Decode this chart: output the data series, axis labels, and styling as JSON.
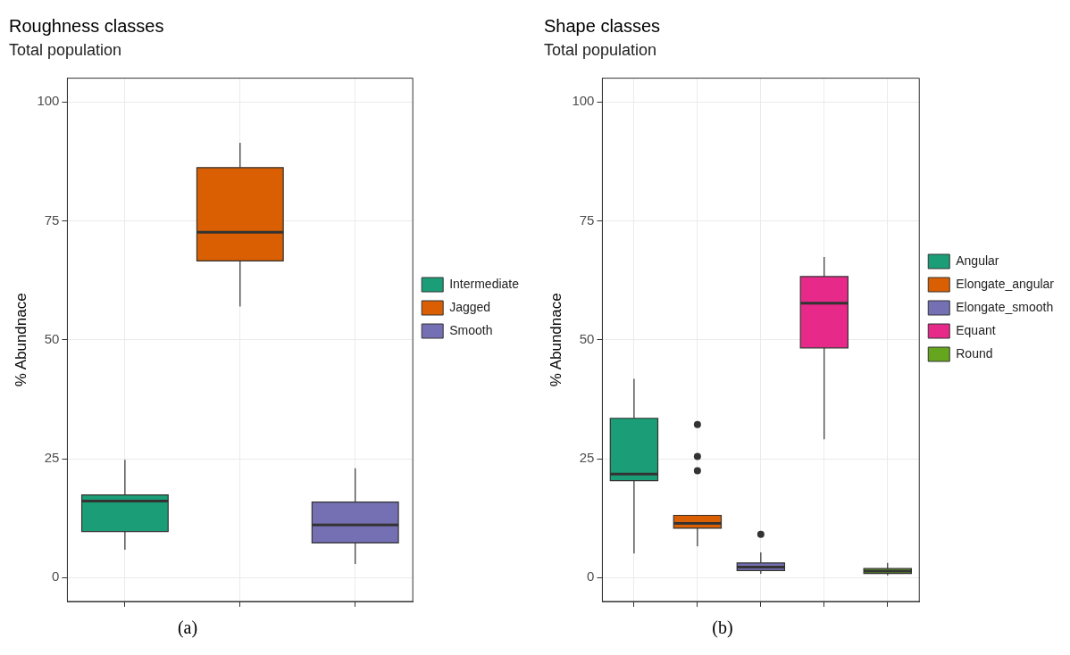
{
  "chart_data": [
    {
      "type": "box",
      "title": "Roughness classes",
      "subtitle": "Total population",
      "ylabel": "% Abundnace",
      "categories": [
        null,
        null,
        null
      ],
      "ylim": [
        -5,
        105
      ],
      "yticks": [
        0,
        25,
        50,
        75,
        100
      ],
      "grid": true,
      "legend": "right",
      "tick_labels": "y",
      "annotations": [
        "(a)"
      ],
      "series": [
        {
          "name": "Intermediate",
          "color": "#1b9e77",
          "boxes": [
            {
              "low": 5.9,
              "q1": 9.7,
              "median": 16.1,
              "q3": 17.4,
              "high": 24.8
            },
            null,
            null
          ]
        },
        {
          "name": "Jagged",
          "color": "#d95f02",
          "boxes": [
            null,
            {
              "low": 57.0,
              "q1": 66.6,
              "median": 72.6,
              "q3": 86.2,
              "high": 91.4
            },
            null
          ]
        },
        {
          "name": "Smooth",
          "color": "#7570b3",
          "boxes": [
            null,
            null,
            {
              "low": 2.9,
              "q1": 7.3,
              "median": 11.1,
              "q3": 15.9,
              "high": 23.0
            }
          ]
        }
      ]
    },
    {
      "type": "box",
      "title": "Shape classes",
      "subtitle": "Total population",
      "ylabel": "% Abundnace",
      "categories": [
        null,
        null,
        null,
        null,
        null
      ],
      "ylim": [
        -5,
        105
      ],
      "yticks": [
        0,
        25,
        50,
        75,
        100
      ],
      "grid": true,
      "legend": "right",
      "tick_labels": "y",
      "annotations": [
        "(b)"
      ],
      "series": [
        {
          "name": "Angular",
          "color": "#1b9e77",
          "boxes": [
            {
              "low": 5.1,
              "q1": 20.4,
              "median": 21.8,
              "q3": 33.5,
              "high": 41.8
            },
            null,
            null,
            null,
            null
          ]
        },
        {
          "name": "Elongate_angular",
          "color": "#d95f02",
          "boxes": [
            null,
            {
              "low": 6.6,
              "q1": 10.4,
              "median": 11.4,
              "q3": 13.1,
              "high": 13.1,
              "outliers": [
                22.5,
                25.5,
                32.2
              ]
            },
            null,
            null,
            null
          ]
        },
        {
          "name": "Elongate_smooth",
          "color": "#7570b3",
          "boxes": [
            null,
            null,
            {
              "low": 0.8,
              "q1": 1.5,
              "median": 2.2,
              "q3": 3.1,
              "high": 5.3,
              "outliers": [
                9.1
              ]
            },
            null,
            null
          ]
        },
        {
          "name": "Equant",
          "color": "#e7298a",
          "boxes": [
            null,
            null,
            null,
            {
              "low": 29.1,
              "q1": 48.3,
              "median": 57.7,
              "q3": 63.3,
              "high": 67.4
            },
            null
          ]
        },
        {
          "name": "Round",
          "color": "#66a61e",
          "boxes": [
            null,
            null,
            null,
            null,
            {
              "low": 0.5,
              "q1": 0.9,
              "median": 1.4,
              "q3": 1.9,
              "high": 3.1
            }
          ]
        }
      ]
    }
  ]
}
